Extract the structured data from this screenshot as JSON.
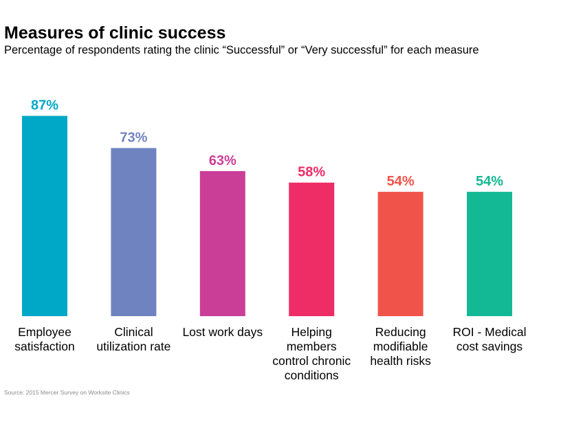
{
  "header": {
    "title": "Measures of clinic success",
    "subtitle": "Percentage of respondents rating the clinic “Successful” or “Very successful” for each measure"
  },
  "footer": {
    "source": "Source: 2015 Mercer Survey on Worksite Clinics"
  },
  "chart_data": {
    "type": "bar",
    "title": "Measures of clinic success",
    "subtitle": "Percentage of respondents rating the clinic “Successful” or “Very successful” for each measure",
    "xlabel": "",
    "ylabel": "",
    "ylim": [
      0,
      100
    ],
    "grid": false,
    "legend": "none",
    "value_suffix": "%",
    "categories": [
      [
        "Employee",
        "satisfaction"
      ],
      [
        "Clinical",
        "utilization rate"
      ],
      [
        "Lost work days"
      ],
      [
        "Helping",
        "members",
        "control chronic",
        "conditions"
      ],
      [
        "Reducing",
        "modifiable",
        "health risks"
      ],
      [
        "ROI - Medical",
        "cost savings"
      ]
    ],
    "values": [
      87,
      73,
      63,
      58,
      54,
      54
    ],
    "data_labels": [
      "87%",
      "73%",
      "63%",
      "58%",
      "54%",
      "54%"
    ],
    "colors": [
      "#00A8C8",
      "#7083C1",
      "#CA3E98",
      "#EE2C66",
      "#F0534A",
      "#13B994"
    ]
  }
}
